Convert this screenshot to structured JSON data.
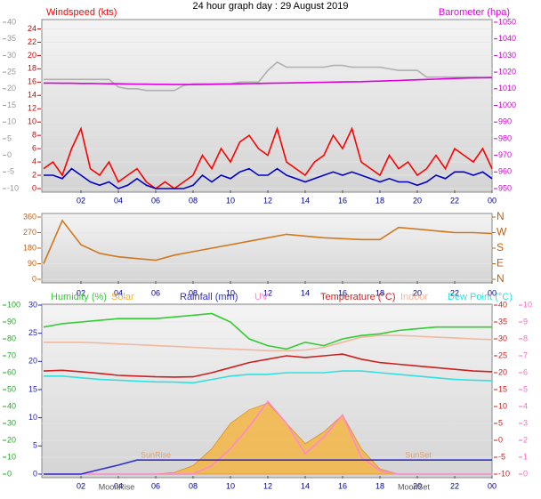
{
  "chart_data": [
    {
      "type": "line",
      "title": "24 hour graph day : 29 August 2019",
      "x": [
        0,
        0.5,
        1,
        1.5,
        2,
        2.5,
        3,
        3.5,
        4,
        4.5,
        5,
        5.5,
        6,
        6.5,
        7,
        7.5,
        8,
        8.5,
        9,
        9.5,
        10,
        10.5,
        11,
        11.5,
        12,
        12.5,
        13,
        13.5,
        14,
        14.5,
        15,
        15.5,
        16,
        16.5,
        17,
        17.5,
        18,
        18.5,
        19,
        19.5,
        20,
        20.5,
        21,
        21.5,
        22,
        22.5,
        23,
        23.5,
        24
      ],
      "xlim": [
        0,
        24
      ],
      "xticks": [
        {
          "value": 2,
          "label": "02"
        },
        {
          "value": 4,
          "label": "04"
        },
        {
          "value": 6,
          "label": "06"
        },
        {
          "value": 8,
          "label": "08"
        },
        10,
        12,
        14,
        16,
        18,
        20,
        22,
        {
          "value": 24,
          "label": "00"
        }
      ],
      "ylim": [
        0,
        25
      ],
      "yticks": [
        0,
        2,
        4,
        6,
        8,
        10,
        12,
        14,
        16,
        18,
        20,
        22,
        24
      ],
      "y2lim": [
        950,
        1050
      ],
      "y2ticks": [
        950,
        960,
        970,
        980,
        990,
        1000,
        1010,
        1020,
        1030,
        1040,
        1050
      ],
      "y3lim": [
        -10,
        40
      ],
      "y3ticks": [
        -10,
        -5,
        0,
        5,
        10,
        15,
        20,
        25,
        30,
        35,
        40
      ],
      "grid": true,
      "series": [
        {
          "color": "#b0b0b0",
          "axis": "y2",
          "values": [
            1015.6,
            1015.6,
            1015.6,
            1015.6,
            1015.6,
            1015.6,
            1015.6,
            1015.6,
            1011,
            1010,
            1010,
            1009,
            1009,
            1009,
            1009,
            1012,
            1013,
            1013,
            1013,
            1013,
            1013,
            1014,
            1014,
            1014,
            1021,
            1026,
            1023,
            1023,
            1023,
            1023,
            1023,
            1024,
            1024,
            1023,
            1023,
            1023,
            1023,
            1022,
            1021,
            1021,
            1021,
            1017,
            1017,
            1017,
            1017,
            1017,
            1017,
            1017,
            1017
          ]
        },
        {
          "name": "Barometer (hpa)",
          "color": "#dd00dd",
          "axis": "y2",
          "values": [
            1013.4,
            1013.4,
            1013.3,
            1013.3,
            1013.2,
            1013.2,
            1013.1,
            1013,
            1013,
            1012.9,
            1012.8,
            1012.8,
            1012.7,
            1012.7,
            1012.6,
            1012.6,
            1012.5,
            1012.6,
            1012.7,
            1012.8,
            1012.9,
            1013,
            1013.1,
            1013.2,
            1013.3,
            1013.4,
            1013.5,
            1013.6,
            1013.7,
            1013.8,
            1013.9,
            1014,
            1014.1,
            1014.2,
            1014.3,
            1014.5,
            1014.6,
            1014.8,
            1015,
            1015.2,
            1015.4,
            1015.6,
            1015.8,
            1016,
            1016.2,
            1016.4,
            1016.5,
            1016.6,
            1016.7
          ]
        },
        {
          "name": "Windspeed (kts)",
          "color": "#ff0000",
          "values": [
            3,
            4,
            2,
            6,
            9,
            3,
            2,
            4,
            1,
            2,
            3,
            1,
            0,
            1,
            0,
            1,
            2,
            5,
            3,
            6,
            4,
            7,
            8,
            6,
            5,
            9,
            4,
            3,
            2,
            4,
            5,
            8,
            6,
            9,
            4,
            3,
            2,
            5,
            3,
            4,
            2,
            3,
            5,
            3,
            6,
            5,
            4,
            6,
            3
          ]
        },
        {
          "color": "#0000cc",
          "values": [
            2,
            2,
            1.5,
            3,
            2,
            1,
            0.5,
            1,
            0,
            0.5,
            1.5,
            0.5,
            0,
            0,
            0,
            0,
            0.5,
            2,
            1,
            2,
            1.5,
            2.5,
            3,
            2,
            2,
            3,
            2,
            1.5,
            1,
            1.5,
            2,
            2.5,
            2,
            2.5,
            2,
            1.5,
            1,
            1.5,
            1,
            1,
            0.5,
            1,
            2,
            1.5,
            2.5,
            2.5,
            2,
            2.5,
            1.5
          ]
        }
      ]
    },
    {
      "type": "line",
      "x": [
        0,
        1,
        2,
        3,
        4,
        5,
        6,
        7,
        8,
        9,
        10,
        11,
        12,
        13,
        14,
        15,
        16,
        17,
        18,
        19,
        20,
        21,
        22,
        23,
        24
      ],
      "xlim": [
        0,
        24
      ],
      "xticks": [
        {
          "value": 2,
          "label": "02"
        },
        {
          "value": 4,
          "label": "04"
        },
        {
          "value": 6,
          "label": "06"
        },
        {
          "value": 8,
          "label": "08"
        },
        10,
        12,
        14,
        16,
        18,
        20,
        22,
        {
          "value": 24,
          "label": "00"
        }
      ],
      "ylim": [
        0,
        360
      ],
      "yticks": [
        0,
        90,
        180,
        270,
        360
      ],
      "y2lim": [
        0,
        360
      ],
      "y2ticks": [
        {
          "value": 0,
          "label": "N"
        },
        {
          "value": 90,
          "label": "E"
        },
        {
          "value": 180,
          "label": "S"
        },
        {
          "value": 270,
          "label": "W"
        },
        {
          "value": 360,
          "label": "N"
        }
      ],
      "grid": true,
      "series": [
        {
          "color": "#d07820",
          "values": [
            90,
            340,
            200,
            150,
            130,
            120,
            110,
            140,
            160,
            180,
            200,
            220,
            240,
            260,
            250,
            240,
            235,
            230,
            230,
            300,
            290,
            280,
            270,
            270,
            265
          ]
        }
      ]
    },
    {
      "type": "line",
      "x": [
        0,
        1,
        2,
        3,
        4,
        5,
        6,
        7,
        8,
        9,
        10,
        11,
        12,
        13,
        14,
        15,
        16,
        17,
        18,
        19,
        20,
        21,
        22,
        23,
        24
      ],
      "xlim": [
        0,
        24
      ],
      "xticks": [
        {
          "value": 2,
          "label": "02"
        },
        {
          "value": 4,
          "label": "04"
        },
        {
          "value": 6,
          "label": "06"
        },
        {
          "value": 8,
          "label": "08"
        },
        10,
        12,
        14,
        16,
        18,
        20,
        22,
        {
          "value": 24,
          "label": "00"
        }
      ],
      "ylim": [
        0,
        100
      ],
      "yticks": [
        0,
        10,
        20,
        30,
        40,
        50,
        60,
        70,
        80,
        90,
        100
      ],
      "y2lim": [
        -10,
        40
      ],
      "y2ticks": [
        -10,
        -5,
        0,
        5,
        10,
        15,
        20,
        25,
        30,
        35,
        40
      ],
      "y3lim": [
        0,
        30
      ],
      "y3ticks": [
        0,
        5,
        10,
        15,
        20,
        25,
        30
      ],
      "y4lim": [
        0,
        10
      ],
      "y4ticks": [
        0,
        1,
        2,
        3,
        4,
        5,
        6,
        7,
        8,
        9,
        10
      ],
      "grid": true,
      "annotations": [
        "SunRise",
        "SunSet",
        "MoonRise",
        "MoonSet"
      ],
      "series": [
        {
          "name": "Solar",
          "color": "#f5b030",
          "area": true,
          "values": [
            0,
            0,
            0,
            0,
            0,
            0,
            0,
            1,
            5,
            15,
            30,
            38,
            42,
            30,
            18,
            25,
            35,
            15,
            3,
            0,
            0,
            0,
            0,
            0,
            0
          ]
        },
        {
          "name": "UV",
          "color": "#ff88cc",
          "axis": "y4",
          "values": [
            0,
            0,
            0,
            0,
            0,
            0,
            0,
            0,
            0,
            0.5,
            1.5,
            2.8,
            4.3,
            3,
            1.2,
            2.2,
            3.5,
            1,
            0.2,
            0,
            0,
            0,
            0,
            0,
            0
          ]
        },
        {
          "name": "Rainfall (mm)",
          "color": "#3030d0",
          "axis": "y3",
          "values": [
            0,
            0,
            0,
            0.8,
            1.6,
            2.5,
            2.5,
            2.5,
            2.5,
            2.5,
            2.5,
            2.5,
            2.5,
            2.5,
            2.5,
            2.5,
            2.5,
            2.5,
            2.5,
            2.5,
            2.5,
            2.5,
            2.5,
            2.5,
            2.5
          ]
        },
        {
          "name": "Humidity (%)",
          "color": "#33cc33",
          "values": [
            87,
            89,
            90,
            91,
            92,
            92,
            92,
            93,
            94,
            95,
            90,
            80,
            76,
            74,
            78,
            76,
            80,
            82,
            83,
            85,
            86,
            87,
            87,
            87,
            87
          ]
        },
        {
          "name": "Temperature (°C)",
          "color": "#cc2020",
          "axis": "y2",
          "values": [
            20.5,
            20.7,
            20.3,
            19.8,
            19.2,
            19,
            18.8,
            18.7,
            18.8,
            20,
            21.5,
            23,
            24,
            25,
            24.5,
            25,
            25.5,
            24,
            23,
            22.5,
            22,
            21.5,
            21,
            20.5,
            20.3
          ]
        },
        {
          "name": "Indoor",
          "color": "#f0b8a0",
          "axis": "y2",
          "values": [
            29,
            29,
            29,
            28.8,
            28.5,
            28.3,
            28,
            27.8,
            27.5,
            27.2,
            27,
            26.8,
            26.5,
            26.5,
            26.7,
            27.5,
            29,
            30.5,
            31,
            31,
            30.8,
            30.5,
            30.3,
            30,
            29.8
          ]
        },
        {
          "name": "Dew Point (°C)",
          "color": "#30e0e0",
          "axis": "y2",
          "values": [
            19,
            19,
            18.5,
            18,
            17.8,
            17.5,
            17.3,
            17.2,
            17,
            18,
            19,
            19.5,
            19.5,
            20,
            20,
            20,
            20.5,
            20.5,
            20,
            19.5,
            19,
            18.5,
            18,
            17.8,
            17.6
          ]
        }
      ]
    }
  ]
}
